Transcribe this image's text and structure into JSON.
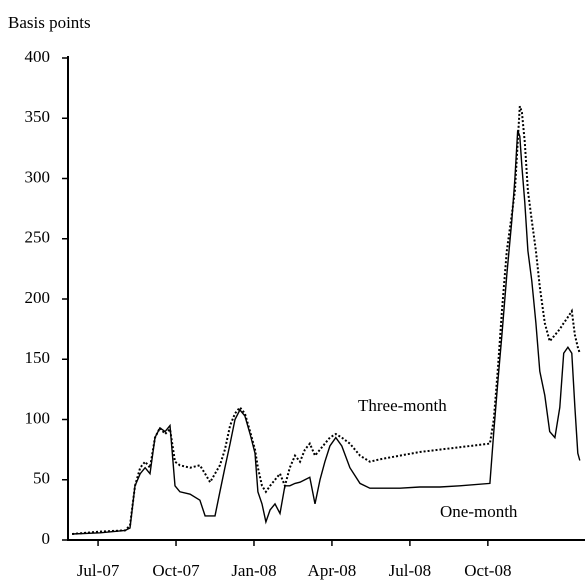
{
  "chart_data": {
    "type": "line",
    "ylabel": "Basis points",
    "x": [
      -1.0,
      0.08,
      1.04,
      1.23,
      1.42,
      1.62,
      1.81,
      2.0,
      2.19,
      2.38,
      2.58,
      2.77,
      2.96,
      3.15,
      3.54,
      3.92,
      4.12,
      4.31,
      4.5,
      4.69,
      4.88,
      5.08,
      5.27,
      5.46,
      5.65,
      5.85,
      6.04,
      6.15,
      6.31,
      6.46,
      6.62,
      6.81,
      7.0,
      7.19,
      7.38,
      7.58,
      7.77,
      7.96,
      8.15,
      8.35,
      8.54,
      8.73,
      8.92,
      9.15,
      9.38,
      9.69,
      10.08,
      10.46,
      10.85,
      11.62,
      12.38,
      13.15,
      13.92,
      15.08,
      15.23,
      15.38,
      15.54,
      15.73,
      15.92,
      16.04,
      16.15,
      16.23,
      16.31,
      16.42,
      16.54,
      16.69,
      16.85,
      17.0,
      17.19,
      17.38,
      17.58,
      17.77,
      17.92,
      18.08,
      18.23,
      18.35,
      18.46,
      18.54
    ],
    "series": [
      {
        "name": "One-month",
        "color": "#000000",
        "dash": "solid",
        "values": [
          5,
          6,
          8,
          10,
          45,
          55,
          60,
          55,
          85,
          93,
          90,
          95,
          45,
          40,
          38,
          33,
          20,
          20,
          20,
          40,
          60,
          80,
          100,
          108,
          103,
          88,
          72,
          40,
          30,
          15,
          25,
          30,
          22,
          45,
          45,
          47,
          48,
          50,
          52,
          30,
          50,
          65,
          78,
          85,
          78,
          60,
          47,
          43,
          43,
          43,
          44,
          44,
          45,
          47,
          90,
          130,
          170,
          220,
          265,
          300,
          340,
          335,
          310,
          280,
          240,
          215,
          180,
          140,
          120,
          90,
          85,
          110,
          155,
          160,
          155,
          110,
          72,
          66
        ]
      },
      {
        "name": "Three-month",
        "color": "#000000",
        "dash": "dotted",
        "values": [
          5,
          7,
          8,
          12,
          45,
          60,
          65,
          60,
          85,
          93,
          88,
          92,
          65,
          62,
          60,
          62,
          55,
          48,
          55,
          62,
          75,
          95,
          105,
          110,
          105,
          90,
          75,
          60,
          45,
          40,
          45,
          50,
          55,
          45,
          60,
          70,
          65,
          75,
          80,
          70,
          75,
          80,
          85,
          88,
          85,
          80,
          70,
          65,
          67,
          70,
          73,
          75,
          77,
          80,
          100,
          140,
          190,
          240,
          270,
          290,
          330,
          360,
          355,
          330,
          290,
          265,
          240,
          210,
          180,
          165,
          170,
          175,
          180,
          185,
          190,
          170,
          160,
          155
        ]
      }
    ],
    "xlim": [
      -1.08,
      18.7
    ],
    "xticks": [
      {
        "value": 0,
        "label": "Jul-07"
      },
      {
        "value": 3,
        "label": "Oct-07"
      },
      {
        "value": 6,
        "label": "Jan-08"
      },
      {
        "value": 9,
        "label": "Apr-08"
      },
      {
        "value": 12,
        "label": "Jul-08"
      },
      {
        "value": 15,
        "label": "Oct-08"
      }
    ],
    "ylim": [
      0,
      400
    ],
    "yticks": [
      0,
      50,
      100,
      150,
      200,
      250,
      300,
      350,
      400
    ]
  }
}
